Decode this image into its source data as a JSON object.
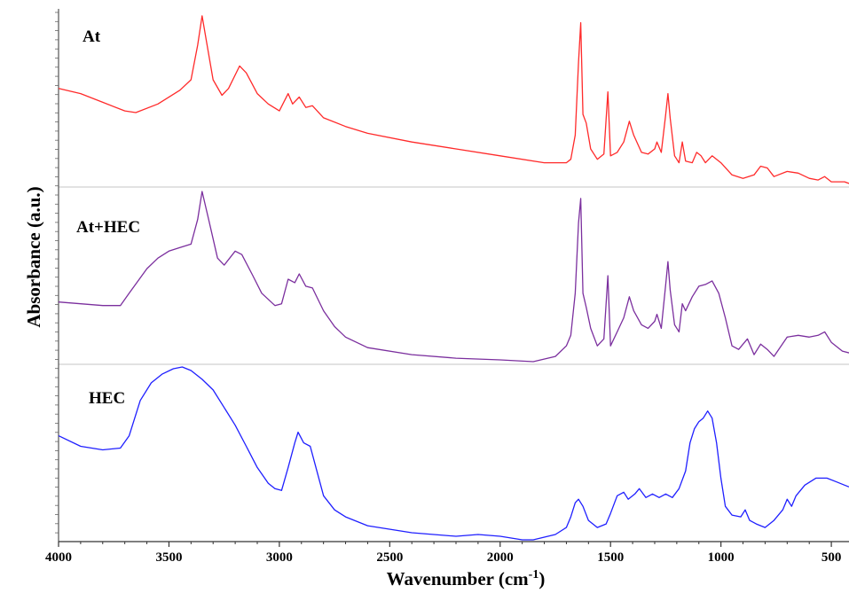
{
  "chart_data": {
    "type": "line",
    "title": "",
    "xlabel": "Wavenumber (cm",
    "xlabel_sup": "-1",
    "xlabel_close": ")",
    "ylabel": "Absorbance (a.u.)",
    "xlim": [
      4000,
      420
    ],
    "x_reversed": true,
    "x_ticks": [
      4000,
      3500,
      3000,
      2500,
      2000,
      1500,
      1000,
      500
    ],
    "x_tick_labels": [
      "4000",
      "3500",
      "3000",
      "2500",
      "2000",
      "1500",
      "1000",
      "500"
    ],
    "y_tick_labels_shown": false,
    "grid": false,
    "stacked_offset_panels": true,
    "series": [
      {
        "name": "At",
        "color": "#ff2a2a",
        "points": [
          [
            4000,
            0.45
          ],
          [
            3900,
            0.48
          ],
          [
            3800,
            0.53
          ],
          [
            3700,
            0.58
          ],
          [
            3650,
            0.59
          ],
          [
            3550,
            0.54
          ],
          [
            3450,
            0.46
          ],
          [
            3400,
            0.4
          ],
          [
            3370,
            0.2
          ],
          [
            3350,
            0.03
          ],
          [
            3330,
            0.18
          ],
          [
            3300,
            0.4
          ],
          [
            3260,
            0.49
          ],
          [
            3230,
            0.45
          ],
          [
            3180,
            0.32
          ],
          [
            3150,
            0.36
          ],
          [
            3100,
            0.48
          ],
          [
            3050,
            0.54
          ],
          [
            3000,
            0.58
          ],
          [
            2960,
            0.48
          ],
          [
            2940,
            0.54
          ],
          [
            2910,
            0.5
          ],
          [
            2880,
            0.56
          ],
          [
            2850,
            0.55
          ],
          [
            2800,
            0.62
          ],
          [
            2700,
            0.67
          ],
          [
            2600,
            0.71
          ],
          [
            2400,
            0.76
          ],
          [
            2200,
            0.8
          ],
          [
            2000,
            0.84
          ],
          [
            1800,
            0.88
          ],
          [
            1700,
            0.88
          ],
          [
            1680,
            0.86
          ],
          [
            1660,
            0.72
          ],
          [
            1645,
            0.3
          ],
          [
            1635,
            0.07
          ],
          [
            1625,
            0.6
          ],
          [
            1610,
            0.65
          ],
          [
            1590,
            0.8
          ],
          [
            1560,
            0.86
          ],
          [
            1530,
            0.83
          ],
          [
            1512,
            0.47
          ],
          [
            1500,
            0.84
          ],
          [
            1470,
            0.82
          ],
          [
            1440,
            0.76
          ],
          [
            1415,
            0.64
          ],
          [
            1395,
            0.72
          ],
          [
            1360,
            0.82
          ],
          [
            1330,
            0.83
          ],
          [
            1300,
            0.8
          ],
          [
            1290,
            0.76
          ],
          [
            1270,
            0.82
          ],
          [
            1250,
            0.6
          ],
          [
            1240,
            0.48
          ],
          [
            1230,
            0.62
          ],
          [
            1210,
            0.84
          ],
          [
            1190,
            0.88
          ],
          [
            1175,
            0.76
          ],
          [
            1160,
            0.87
          ],
          [
            1130,
            0.88
          ],
          [
            1110,
            0.82
          ],
          [
            1090,
            0.84
          ],
          [
            1070,
            0.88
          ],
          [
            1040,
            0.84
          ],
          [
            1000,
            0.88
          ],
          [
            950,
            0.95
          ],
          [
            900,
            0.97
          ],
          [
            850,
            0.95
          ],
          [
            820,
            0.9
          ],
          [
            790,
            0.91
          ],
          [
            760,
            0.96
          ],
          [
            700,
            0.93
          ],
          [
            650,
            0.94
          ],
          [
            600,
            0.97
          ],
          [
            560,
            0.98
          ],
          [
            530,
            0.96
          ],
          [
            500,
            0.99
          ],
          [
            440,
            0.99
          ],
          [
            420,
            1.0
          ]
        ]
      },
      {
        "name": "At+HEC",
        "color": "#7b2f9e",
        "points": [
          [
            4000,
            0.65
          ],
          [
            3900,
            0.66
          ],
          [
            3800,
            0.67
          ],
          [
            3720,
            0.67
          ],
          [
            3680,
            0.6
          ],
          [
            3600,
            0.46
          ],
          [
            3550,
            0.4
          ],
          [
            3500,
            0.36
          ],
          [
            3450,
            0.34
          ],
          [
            3400,
            0.32
          ],
          [
            3370,
            0.18
          ],
          [
            3350,
            0.02
          ],
          [
            3320,
            0.18
          ],
          [
            3280,
            0.4
          ],
          [
            3250,
            0.44
          ],
          [
            3200,
            0.36
          ],
          [
            3170,
            0.38
          ],
          [
            3120,
            0.5
          ],
          [
            3080,
            0.6
          ],
          [
            3020,
            0.67
          ],
          [
            2990,
            0.66
          ],
          [
            2960,
            0.52
          ],
          [
            2930,
            0.54
          ],
          [
            2910,
            0.49
          ],
          [
            2880,
            0.56
          ],
          [
            2850,
            0.57
          ],
          [
            2800,
            0.7
          ],
          [
            2750,
            0.79
          ],
          [
            2700,
            0.85
          ],
          [
            2600,
            0.91
          ],
          [
            2400,
            0.95
          ],
          [
            2200,
            0.97
          ],
          [
            2000,
            0.98
          ],
          [
            1850,
            0.99
          ],
          [
            1750,
            0.96
          ],
          [
            1700,
            0.9
          ],
          [
            1680,
            0.84
          ],
          [
            1660,
            0.6
          ],
          [
            1645,
            0.2
          ],
          [
            1635,
            0.06
          ],
          [
            1625,
            0.6
          ],
          [
            1610,
            0.68
          ],
          [
            1590,
            0.8
          ],
          [
            1560,
            0.9
          ],
          [
            1530,
            0.86
          ],
          [
            1512,
            0.5
          ],
          [
            1500,
            0.9
          ],
          [
            1470,
            0.82
          ],
          [
            1440,
            0.74
          ],
          [
            1415,
            0.62
          ],
          [
            1395,
            0.7
          ],
          [
            1360,
            0.78
          ],
          [
            1330,
            0.8
          ],
          [
            1300,
            0.76
          ],
          [
            1290,
            0.72
          ],
          [
            1270,
            0.8
          ],
          [
            1250,
            0.55
          ],
          [
            1240,
            0.42
          ],
          [
            1230,
            0.58
          ],
          [
            1210,
            0.78
          ],
          [
            1190,
            0.82
          ],
          [
            1175,
            0.66
          ],
          [
            1160,
            0.7
          ],
          [
            1130,
            0.62
          ],
          [
            1100,
            0.56
          ],
          [
            1070,
            0.55
          ],
          [
            1040,
            0.53
          ],
          [
            1010,
            0.6
          ],
          [
            980,
            0.74
          ],
          [
            950,
            0.9
          ],
          [
            920,
            0.92
          ],
          [
            880,
            0.86
          ],
          [
            850,
            0.95
          ],
          [
            820,
            0.89
          ],
          [
            790,
            0.92
          ],
          [
            760,
            0.96
          ],
          [
            700,
            0.85
          ],
          [
            650,
            0.84
          ],
          [
            600,
            0.85
          ],
          [
            560,
            0.84
          ],
          [
            530,
            0.82
          ],
          [
            500,
            0.88
          ],
          [
            450,
            0.93
          ],
          [
            420,
            0.94
          ]
        ]
      },
      {
        "name": "HEC",
        "color": "#1f1fff",
        "points": [
          [
            4000,
            0.4
          ],
          [
            3900,
            0.46
          ],
          [
            3800,
            0.48
          ],
          [
            3720,
            0.47
          ],
          [
            3680,
            0.4
          ],
          [
            3630,
            0.2
          ],
          [
            3580,
            0.1
          ],
          [
            3530,
            0.05
          ],
          [
            3480,
            0.02
          ],
          [
            3440,
            0.01
          ],
          [
            3400,
            0.03
          ],
          [
            3350,
            0.08
          ],
          [
            3300,
            0.14
          ],
          [
            3250,
            0.24
          ],
          [
            3200,
            0.34
          ],
          [
            3150,
            0.46
          ],
          [
            3100,
            0.58
          ],
          [
            3050,
            0.67
          ],
          [
            3020,
            0.7
          ],
          [
            2990,
            0.71
          ],
          [
            2960,
            0.58
          ],
          [
            2930,
            0.44
          ],
          [
            2915,
            0.38
          ],
          [
            2890,
            0.44
          ],
          [
            2860,
            0.46
          ],
          [
            2830,
            0.6
          ],
          [
            2800,
            0.74
          ],
          [
            2750,
            0.82
          ],
          [
            2700,
            0.86
          ],
          [
            2600,
            0.91
          ],
          [
            2400,
            0.95
          ],
          [
            2200,
            0.97
          ],
          [
            2100,
            0.96
          ],
          [
            2000,
            0.97
          ],
          [
            1900,
            0.99
          ],
          [
            1850,
            0.99
          ],
          [
            1750,
            0.96
          ],
          [
            1700,
            0.92
          ],
          [
            1680,
            0.86
          ],
          [
            1660,
            0.78
          ],
          [
            1645,
            0.76
          ],
          [
            1625,
            0.8
          ],
          [
            1600,
            0.88
          ],
          [
            1560,
            0.92
          ],
          [
            1520,
            0.9
          ],
          [
            1500,
            0.84
          ],
          [
            1470,
            0.74
          ],
          [
            1440,
            0.72
          ],
          [
            1420,
            0.76
          ],
          [
            1390,
            0.73
          ],
          [
            1370,
            0.7
          ],
          [
            1340,
            0.75
          ],
          [
            1310,
            0.73
          ],
          [
            1280,
            0.75
          ],
          [
            1250,
            0.73
          ],
          [
            1220,
            0.75
          ],
          [
            1190,
            0.7
          ],
          [
            1160,
            0.6
          ],
          [
            1140,
            0.44
          ],
          [
            1120,
            0.36
          ],
          [
            1100,
            0.32
          ],
          [
            1080,
            0.3
          ],
          [
            1060,
            0.26
          ],
          [
            1040,
            0.3
          ],
          [
            1020,
            0.44
          ],
          [
            1000,
            0.64
          ],
          [
            980,
            0.8
          ],
          [
            950,
            0.85
          ],
          [
            910,
            0.86
          ],
          [
            890,
            0.82
          ],
          [
            870,
            0.88
          ],
          [
            840,
            0.9
          ],
          [
            800,
            0.92
          ],
          [
            760,
            0.88
          ],
          [
            720,
            0.82
          ],
          [
            700,
            0.76
          ],
          [
            680,
            0.8
          ],
          [
            660,
            0.74
          ],
          [
            620,
            0.68
          ],
          [
            570,
            0.64
          ],
          [
            520,
            0.64
          ],
          [
            480,
            0.66
          ],
          [
            440,
            0.68
          ],
          [
            420,
            0.69
          ]
        ]
      }
    ]
  }
}
